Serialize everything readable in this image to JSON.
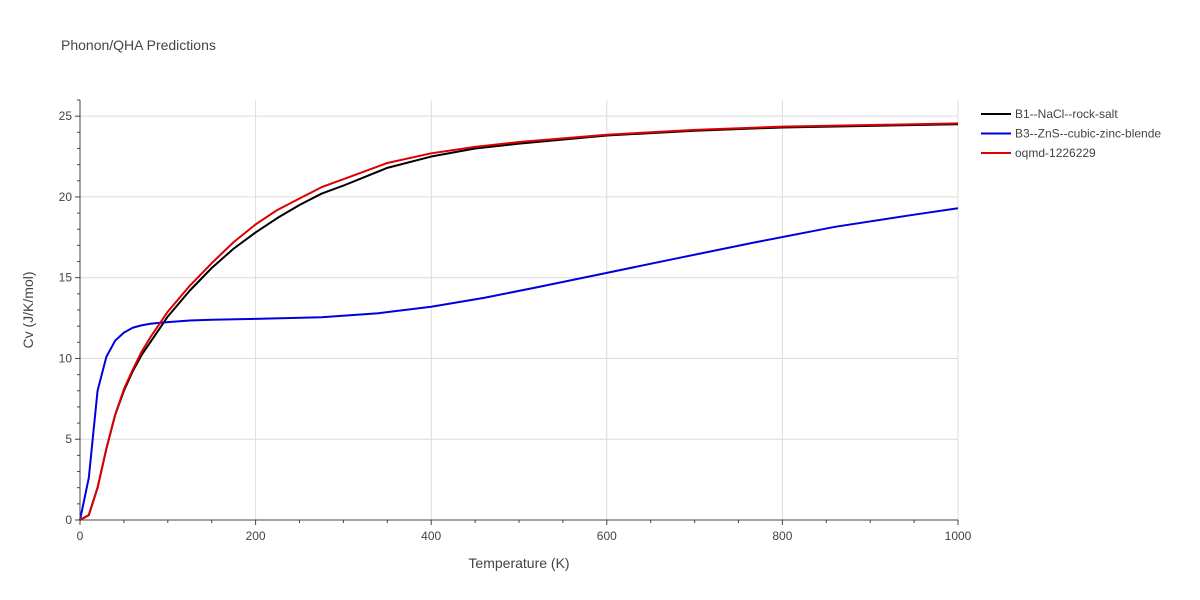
{
  "chart_data": {
    "type": "line",
    "title": "Phonon/QHA Predictions",
    "xlabel": "Temperature (K)",
    "ylabel": "Cv (J/K/mol)",
    "xlim": [
      0,
      1000
    ],
    "ylim": [
      0,
      26
    ],
    "x_ticks": [
      0,
      200,
      400,
      600,
      800,
      1000
    ],
    "y_ticks": [
      0,
      5,
      10,
      15,
      20,
      25
    ],
    "grid": true,
    "legend_position": "top-right",
    "series": [
      {
        "name": "B1--NaCl--rock-salt",
        "color": "#000000",
        "x": [
          0,
          10,
          20,
          30,
          40,
          50,
          60,
          70,
          80,
          90,
          100,
          125,
          150,
          175,
          200,
          225,
          250,
          275,
          300,
          350,
          400,
          450,
          500,
          600,
          700,
          800,
          900,
          1000
        ],
        "y": [
          0,
          0.3,
          2.0,
          4.4,
          6.5,
          8.0,
          9.2,
          10.2,
          11.0,
          11.8,
          12.6,
          14.2,
          15.6,
          16.8,
          17.8,
          18.7,
          19.5,
          20.2,
          20.7,
          21.8,
          22.5,
          23.0,
          23.3,
          23.8,
          24.1,
          24.3,
          24.4,
          24.5
        ]
      },
      {
        "name": "B3--ZnS--cubic-zinc-blende",
        "color": "#0000dd",
        "x": [
          0,
          10,
          20,
          30,
          40,
          50,
          60,
          70,
          80,
          90,
          100,
          125,
          150,
          200,
          275,
          340,
          400,
          460,
          520,
          600,
          680,
          770,
          860,
          950,
          1000
        ],
        "y": [
          0,
          2.6,
          8.0,
          10.1,
          11.1,
          11.6,
          11.9,
          12.05,
          12.15,
          12.2,
          12.25,
          12.35,
          12.4,
          12.45,
          12.55,
          12.8,
          13.2,
          13.75,
          14.4,
          15.3,
          16.2,
          17.2,
          18.15,
          18.9,
          19.3
        ]
      },
      {
        "name": "oqmd-1226229",
        "color": "#dd0000",
        "x": [
          0,
          10,
          20,
          30,
          40,
          50,
          60,
          70,
          80,
          90,
          100,
          125,
          150,
          175,
          200,
          225,
          250,
          275,
          300,
          350,
          400,
          450,
          500,
          600,
          700,
          800,
          900,
          1000
        ],
        "y": [
          0,
          0.3,
          2.0,
          4.4,
          6.5,
          8.1,
          9.3,
          10.4,
          11.3,
          12.1,
          12.9,
          14.5,
          15.9,
          17.2,
          18.3,
          19.2,
          19.9,
          20.6,
          21.1,
          22.1,
          22.7,
          23.1,
          23.4,
          23.85,
          24.15,
          24.35,
          24.45,
          24.55
        ]
      }
    ]
  }
}
